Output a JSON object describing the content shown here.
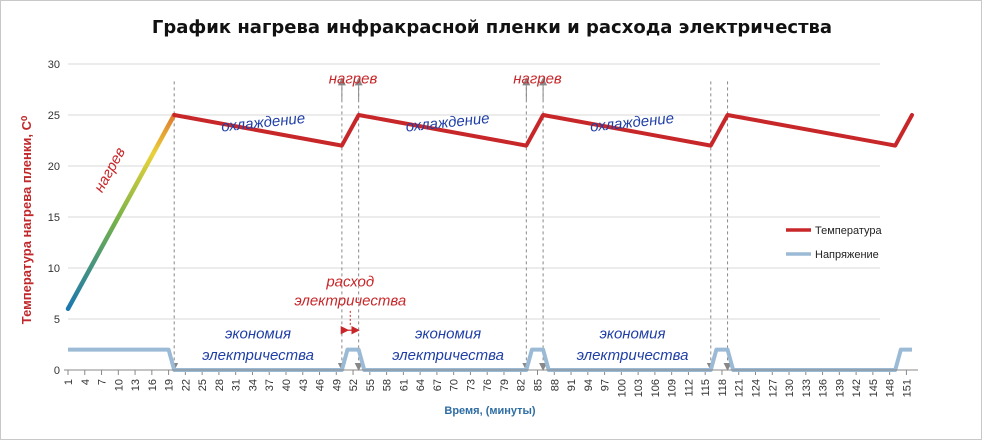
{
  "chart_data": {
    "type": "line",
    "title": "График нагрева инфракрасной пленки и расхода электричества",
    "ylabel": "Температура нагрева пленки, С⁰",
    "xlabel": "Время, (минуты)",
    "ylim": [
      0,
      30
    ],
    "xlim": [
      1,
      152
    ],
    "yticks": [
      0,
      5,
      10,
      15,
      20,
      25,
      30
    ],
    "xticks": [
      1,
      4,
      7,
      10,
      13,
      16,
      19,
      22,
      25,
      28,
      31,
      34,
      37,
      40,
      43,
      46,
      49,
      52,
      55,
      58,
      61,
      64,
      67,
      70,
      73,
      76,
      79,
      82,
      85,
      88,
      91,
      94,
      97,
      100,
      103,
      106,
      109,
      112,
      115,
      118,
      121,
      124,
      127,
      130,
      133,
      136,
      139,
      142,
      145,
      148,
      151
    ],
    "grid": "horizontal",
    "legend_position": "right",
    "series": [
      {
        "name": "Температура",
        "color": "#c8272a",
        "x": [
          1,
          20,
          50,
          53,
          83,
          86,
          116,
          119,
          149,
          152
        ],
        "y": [
          6,
          25,
          22,
          25,
          22,
          25,
          22,
          25,
          22,
          25
        ]
      },
      {
        "name": "Напряжение",
        "color": "#9bbad6",
        "x": [
          1,
          19,
          20,
          50,
          51,
          53,
          54,
          83,
          84,
          86,
          87,
          116,
          117,
          119,
          120,
          149,
          150,
          152
        ],
        "y": [
          2,
          2,
          0,
          0,
          2,
          2,
          0,
          0,
          2,
          2,
          0,
          0,
          2,
          2,
          0,
          0,
          2,
          2
        ]
      }
    ],
    "annotations": {
      "heating_ramp": {
        "text": "нагрев",
        "color": "#c8272a"
      },
      "heating_top": [
        {
          "text": "нагрев",
          "color": "#c8272a",
          "x": 52,
          "y": 28.6
        },
        {
          "text": "нагрев",
          "color": "#c8272a",
          "x": 85,
          "y": 28.6
        }
      ],
      "cooling": [
        {
          "text": "охлаждение",
          "color": "#1f3fa6",
          "x": 36,
          "y": 23.8,
          "angle": -6
        },
        {
          "text": "охлаждение",
          "color": "#1f3fa6",
          "x": 69,
          "y": 23.8,
          "angle": -6
        },
        {
          "text": "охлаждение",
          "color": "#1f3fa6",
          "x": 102,
          "y": 23.8,
          "angle": -6
        }
      ],
      "electricity_use": {
        "line1": "расход",
        "line2": "электричества",
        "color": "#c8272a"
      },
      "economy": [
        {
          "line1": "экономия",
          "line2": "электричества",
          "color": "#1f3fa6",
          "x": 35
        },
        {
          "line1": "экономия",
          "line2": "электричества",
          "color": "#1f3fa6",
          "x": 69
        },
        {
          "line1": "экономия",
          "line2": "электричества",
          "color": "#1f3fa6",
          "x": 102
        }
      ],
      "marker_lines_x": [
        20,
        50,
        53,
        83,
        86,
        116,
        119
      ]
    }
  }
}
